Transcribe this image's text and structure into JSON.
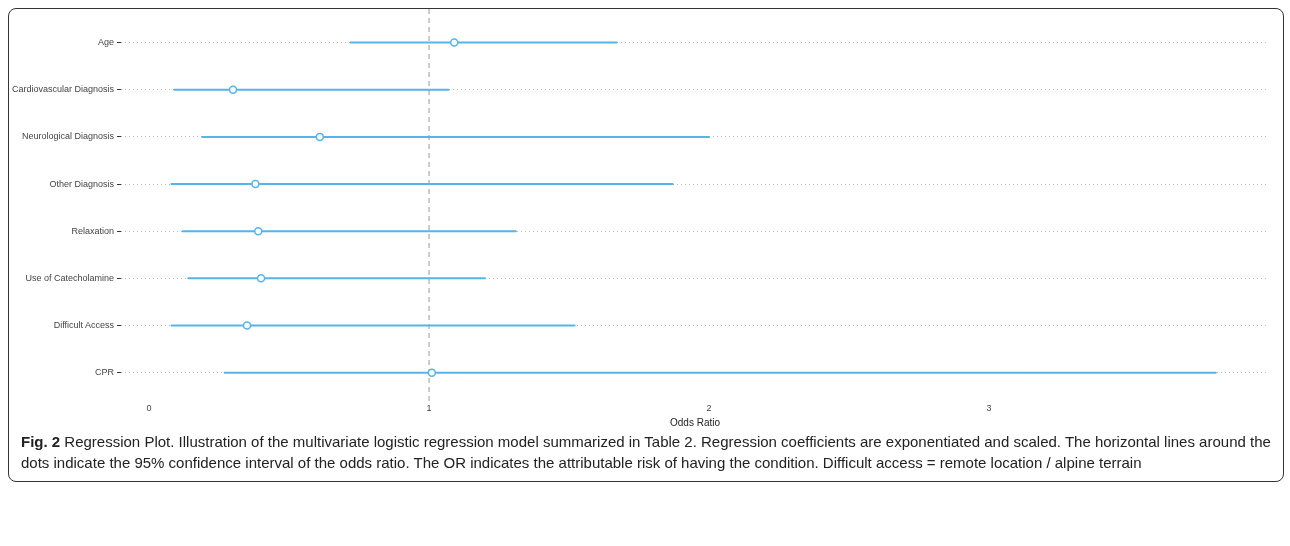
{
  "chart_data": {
    "type": "scatter",
    "orientation": "horizontal",
    "title": "Fig. 2",
    "xlabel": "Odds Ratio",
    "categories": [
      "Age",
      "Cardiovascular Diagnosis",
      "Neurological Diagnosis",
      "Other Diagnosis",
      "Relaxation",
      "Use of Catecholamine",
      "Difficult Access",
      "CPR"
    ],
    "values": [
      1.09,
      0.3,
      0.61,
      0.38,
      0.39,
      0.4,
      0.35,
      1.01
    ],
    "errors": [
      [
        0.72,
        1.67
      ],
      [
        0.09,
        1.07
      ],
      [
        0.19,
        2.0
      ],
      [
        0.08,
        1.87
      ],
      [
        0.12,
        1.31
      ],
      [
        0.14,
        1.2
      ],
      [
        0.08,
        1.52
      ],
      [
        0.27,
        3.81
      ]
    ],
    "color": "#56b4e9",
    "marker": "circle",
    "grid": "y",
    "xlim": [
      -0.1,
      4.0
    ],
    "xticks": [
      0,
      1,
      2,
      3
    ],
    "ref_lines": [
      {
        "axis": "x",
        "value": 1,
        "color": "#999999",
        "line_style": "dashed"
      }
    ],
    "annotations": [
      "Regression Plot. Illustration of the multivariate logistic regression model summarized in Table 2. Regression coefficients are exponentiated and scaled. The horizontal lines around the dots indicate the 95% confidence interval of the odds ratio. The OR indicates the attributable risk of having the condition. Difficult access = remote location / alpine terrain"
    ]
  }
}
